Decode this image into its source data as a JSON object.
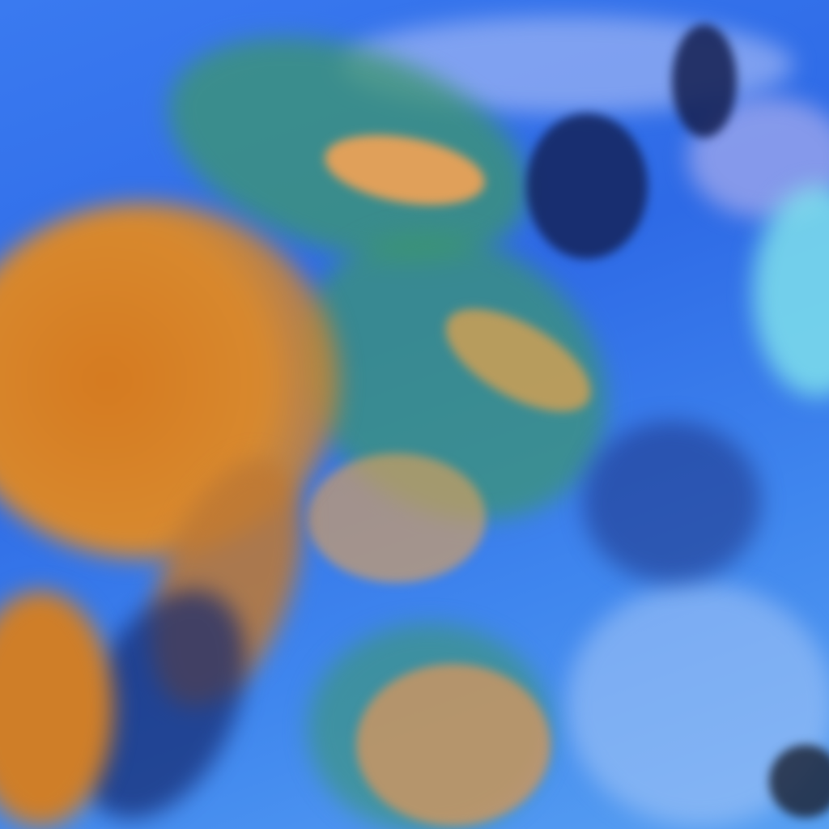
{
  "image": {
    "kind": "false-color satellite imagery of a storm system",
    "colors": {
      "ocean_background": "#2f6ae4",
      "high_cloud_core": "#d98a2a",
      "cloud_edges": "#3f9a6a",
      "thin_cloud": "#b8c8f4",
      "cyan_region": "#7fe0ea",
      "dark_cells": "#142a6a"
    }
  }
}
